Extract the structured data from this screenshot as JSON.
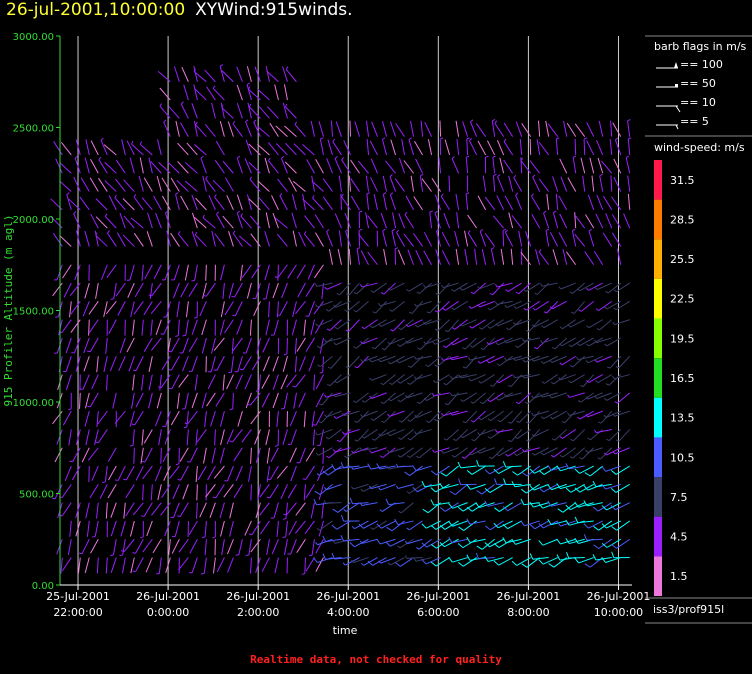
{
  "header": {
    "timestamp": "26-jul-2001,10:00:00",
    "plot_name": "XYWind:915winds."
  },
  "footer": {
    "note": "Realtime data, not checked for quality"
  },
  "legend": {
    "barb_title": "barb flags in m/s",
    "barbs": [
      {
        "label": "== 100",
        "kind": "pennant"
      },
      {
        "label": "== 50",
        "kind": "pennant-small"
      },
      {
        "label": "== 10",
        "kind": "full"
      },
      {
        "label": "== 5",
        "kind": "half"
      }
    ],
    "colorbar_title": "wind-speed: m/s",
    "colorbar": [
      {
        "label": "31.5",
        "color": "#ff1a4a"
      },
      {
        "label": "28.5",
        "color": "#ff7a00"
      },
      {
        "label": "25.5",
        "color": "#ffb000"
      },
      {
        "label": "22.5",
        "color": "#ffff00"
      },
      {
        "label": "19.5",
        "color": "#88ff00"
      },
      {
        "label": "16.5",
        "color": "#22dd22"
      },
      {
        "label": "13.5",
        "color": "#00ffff"
      },
      {
        "label": "10.5",
        "color": "#4a5cff"
      },
      {
        "label": "7.5",
        "color": "#3a3f6a"
      },
      {
        "label": "4.5",
        "color": "#9a20ff"
      },
      {
        "label": "1.5",
        "color": "#ee77dd"
      }
    ],
    "station": "iss3/prof915l"
  },
  "chart_data": {
    "type": "wind-barb",
    "xlabel": "time",
    "ylabel": "915 Profiler Altitude (m agl)",
    "ylim": [
      0,
      3000
    ],
    "yticks": [
      "0.00",
      "500.00",
      "1000.00",
      "1500.00",
      "2000.00",
      "2500.00",
      "3000.00"
    ],
    "xticks": [
      {
        "date": "25-Jul-2001",
        "time": "22:00:00"
      },
      {
        "date": "26-Jul-2001",
        "time": "0:00:00"
      },
      {
        "date": "26-Jul-2001",
        "time": "2:00:00"
      },
      {
        "date": "26-Jul-2001",
        "time": "4:00:00"
      },
      {
        "date": "26-Jul-2001",
        "time": "6:00:00"
      },
      {
        "date": "26-Jul-2001",
        "time": "8:00:00"
      },
      {
        "date": "26-Jul-2001",
        "time": "10:00:00"
      }
    ],
    "time_range_hours": [
      -2.4,
      10.3
    ],
    "sample_interval_hours": 0.2,
    "vertical_gridlines": true,
    "altitude_levels_m": [
      150,
      250,
      350,
      450,
      550,
      650,
      750,
      850,
      950,
      1050,
      1150,
      1250,
      1350,
      1450,
      1550,
      1650,
      1750,
      1850,
      1950,
      2050,
      2150,
      2250,
      2350,
      2450,
      2550,
      2650,
      2750
    ],
    "regimes": [
      {
        "t_start": -2.4,
        "t_end": 3.6,
        "z_max": 1800,
        "speed_ms": 4,
        "dir_deg": 200
      },
      {
        "t_start": -2.4,
        "t_end": 3.6,
        "z_min": 1800,
        "speed_ms": 4,
        "dir_deg": 330
      },
      {
        "t_start": 3.6,
        "t_end": 10.3,
        "z_max": 700,
        "speed_ms": 10,
        "dir_deg": 250
      },
      {
        "t_start": 3.6,
        "t_end": 10.3,
        "z_min": 700,
        "z_max": 1700,
        "speed_ms": 7,
        "dir_deg": 240
      },
      {
        "t_start": 3.6,
        "t_end": 10.3,
        "z_min": 1700,
        "speed_ms": 4,
        "dir_deg": 340
      }
    ]
  }
}
